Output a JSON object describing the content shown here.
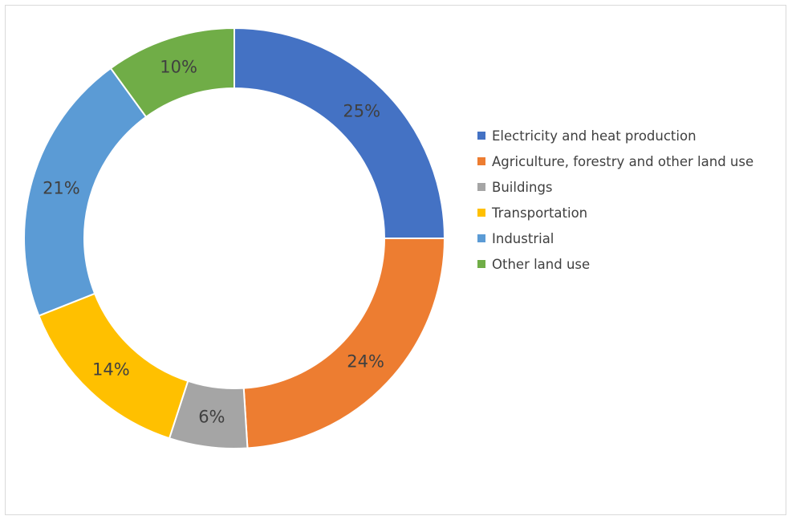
{
  "chart_data": {
    "type": "pie",
    "variant": "donut",
    "title": "",
    "categories": [
      "Electricity and heat production",
      "Agriculture, forestry and other land use",
      "Buildings",
      "Transportation",
      "Industrial",
      "Other land use"
    ],
    "values": [
      25,
      24,
      6,
      14,
      21,
      10
    ],
    "data_labels": [
      "25%",
      "24%",
      "6%",
      "14%",
      "21%",
      "10%"
    ],
    "colors": [
      "#4472C4",
      "#ED7D31",
      "#A5A5A5",
      "#FFC000",
      "#5B9BD5",
      "#70AD47"
    ],
    "legend_position": "right",
    "grid": false
  }
}
